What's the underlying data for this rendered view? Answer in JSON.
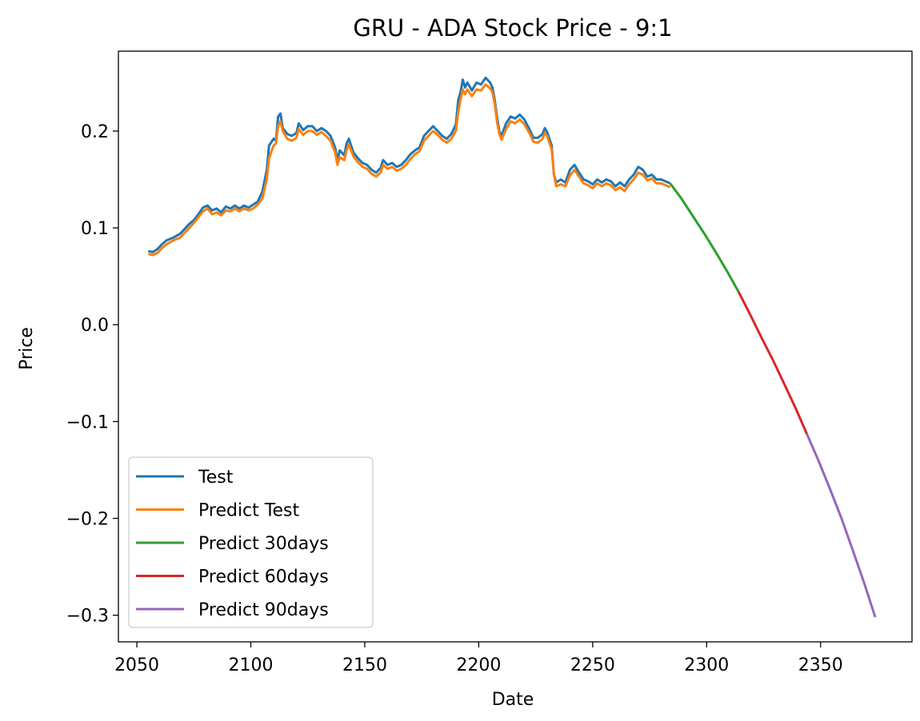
{
  "chart_data": {
    "type": "line",
    "title": "GRU - ADA Stock Price - 9:1",
    "xlabel": "Date",
    "ylabel": "Price",
    "xlim": [
      2041.9,
      2390.1
    ],
    "ylim": [
      -0.3275,
      0.2825
    ],
    "xticks": [
      2050,
      2100,
      2150,
      2200,
      2250,
      2300,
      2350
    ],
    "xtick_labels": [
      "2050",
      "2100",
      "2150",
      "2200",
      "2250",
      "2300",
      "2350"
    ],
    "yticks": [
      -0.3,
      -0.2,
      -0.1,
      0.0,
      0.1,
      0.2
    ],
    "ytick_labels": [
      "−0.3",
      "−0.2",
      "−0.1",
      "0.0",
      "0.1",
      "0.2"
    ],
    "grid": false,
    "legend_position": "lower-left",
    "series": [
      {
        "name": "Test",
        "color": "#1f77b4",
        "points": [
          [
            2055,
            0.076
          ],
          [
            2057,
            0.075
          ],
          [
            2059,
            0.078
          ],
          [
            2061,
            0.083
          ],
          [
            2063,
            0.087
          ],
          [
            2066,
            0.09
          ],
          [
            2069,
            0.094
          ],
          [
            2071,
            0.099
          ],
          [
            2073,
            0.104
          ],
          [
            2075,
            0.108
          ],
          [
            2077,
            0.114
          ],
          [
            2079,
            0.121
          ],
          [
            2081,
            0.123
          ],
          [
            2083,
            0.118
          ],
          [
            2085,
            0.12
          ],
          [
            2087,
            0.116
          ],
          [
            2089,
            0.122
          ],
          [
            2091,
            0.12
          ],
          [
            2093,
            0.123
          ],
          [
            2095,
            0.12
          ],
          [
            2097,
            0.123
          ],
          [
            2099,
            0.121
          ],
          [
            2101,
            0.124
          ],
          [
            2103,
            0.127
          ],
          [
            2105,
            0.137
          ],
          [
            2107,
            0.16
          ],
          [
            2108,
            0.185
          ],
          [
            2110,
            0.192
          ],
          [
            2111,
            0.19
          ],
          [
            2112,
            0.215
          ],
          [
            2113,
            0.218
          ],
          [
            2114,
            0.203
          ],
          [
            2116,
            0.197
          ],
          [
            2118,
            0.195
          ],
          [
            2120,
            0.198
          ],
          [
            2121,
            0.208
          ],
          [
            2123,
            0.201
          ],
          [
            2125,
            0.205
          ],
          [
            2127,
            0.205
          ],
          [
            2129,
            0.2
          ],
          [
            2131,
            0.203
          ],
          [
            2133,
            0.2
          ],
          [
            2135,
            0.195
          ],
          [
            2137,
            0.183
          ],
          [
            2138,
            0.17
          ],
          [
            2139,
            0.18
          ],
          [
            2141,
            0.175
          ],
          [
            2142,
            0.187
          ],
          [
            2143,
            0.192
          ],
          [
            2145,
            0.178
          ],
          [
            2147,
            0.172
          ],
          [
            2149,
            0.167
          ],
          [
            2151,
            0.165
          ],
          [
            2153,
            0.16
          ],
          [
            2155,
            0.157
          ],
          [
            2157,
            0.162
          ],
          [
            2158,
            0.17
          ],
          [
            2160,
            0.165
          ],
          [
            2162,
            0.167
          ],
          [
            2164,
            0.163
          ],
          [
            2166,
            0.165
          ],
          [
            2168,
            0.17
          ],
          [
            2170,
            0.176
          ],
          [
            2172,
            0.18
          ],
          [
            2174,
            0.183
          ],
          [
            2176,
            0.195
          ],
          [
            2178,
            0.2
          ],
          [
            2180,
            0.205
          ],
          [
            2182,
            0.2
          ],
          [
            2184,
            0.195
          ],
          [
            2186,
            0.192
          ],
          [
            2188,
            0.197
          ],
          [
            2190,
            0.207
          ],
          [
            2191,
            0.232
          ],
          [
            2192,
            0.24
          ],
          [
            2193,
            0.253
          ],
          [
            2194,
            0.245
          ],
          [
            2195,
            0.25
          ],
          [
            2197,
            0.242
          ],
          [
            2199,
            0.25
          ],
          [
            2201,
            0.248
          ],
          [
            2203,
            0.255
          ],
          [
            2205,
            0.25
          ],
          [
            2206,
            0.245
          ],
          [
            2207,
            0.232
          ],
          [
            2208,
            0.215
          ],
          [
            2209,
            0.2
          ],
          [
            2210,
            0.195
          ],
          [
            2212,
            0.208
          ],
          [
            2214,
            0.215
          ],
          [
            2216,
            0.213
          ],
          [
            2218,
            0.217
          ],
          [
            2220,
            0.212
          ],
          [
            2222,
            0.203
          ],
          [
            2224,
            0.193
          ],
          [
            2226,
            0.193
          ],
          [
            2228,
            0.197
          ],
          [
            2229,
            0.203
          ],
          [
            2230,
            0.199
          ],
          [
            2232,
            0.185
          ],
          [
            2233,
            0.155
          ],
          [
            2234,
            0.147
          ],
          [
            2236,
            0.15
          ],
          [
            2238,
            0.147
          ],
          [
            2240,
            0.16
          ],
          [
            2242,
            0.165
          ],
          [
            2244,
            0.157
          ],
          [
            2246,
            0.15
          ],
          [
            2248,
            0.148
          ],
          [
            2250,
            0.145
          ],
          [
            2252,
            0.15
          ],
          [
            2254,
            0.147
          ],
          [
            2256,
            0.15
          ],
          [
            2258,
            0.148
          ],
          [
            2260,
            0.143
          ],
          [
            2262,
            0.147
          ],
          [
            2264,
            0.143
          ],
          [
            2266,
            0.15
          ],
          [
            2268,
            0.155
          ],
          [
            2270,
            0.163
          ],
          [
            2272,
            0.16
          ],
          [
            2274,
            0.153
          ],
          [
            2276,
            0.155
          ],
          [
            2278,
            0.15
          ],
          [
            2280,
            0.15
          ],
          [
            2282,
            0.148
          ],
          [
            2284,
            0.146
          ]
        ]
      },
      {
        "name": "Predict Test",
        "color": "#ff7f0e",
        "points": [
          [
            2055,
            0.073
          ],
          [
            2057,
            0.072
          ],
          [
            2059,
            0.074
          ],
          [
            2061,
            0.079
          ],
          [
            2063,
            0.083
          ],
          [
            2066,
            0.087
          ],
          [
            2069,
            0.09
          ],
          [
            2071,
            0.095
          ],
          [
            2073,
            0.1
          ],
          [
            2075,
            0.105
          ],
          [
            2077,
            0.111
          ],
          [
            2079,
            0.117
          ],
          [
            2081,
            0.12
          ],
          [
            2083,
            0.114
          ],
          [
            2085,
            0.116
          ],
          [
            2087,
            0.113
          ],
          [
            2089,
            0.118
          ],
          [
            2091,
            0.117
          ],
          [
            2093,
            0.12
          ],
          [
            2095,
            0.117
          ],
          [
            2097,
            0.12
          ],
          [
            2099,
            0.118
          ],
          [
            2101,
            0.12
          ],
          [
            2103,
            0.124
          ],
          [
            2105,
            0.13
          ],
          [
            2107,
            0.15
          ],
          [
            2108,
            0.172
          ],
          [
            2110,
            0.185
          ],
          [
            2111,
            0.187
          ],
          [
            2112,
            0.205
          ],
          [
            2113,
            0.21
          ],
          [
            2114,
            0.2
          ],
          [
            2116,
            0.192
          ],
          [
            2118,
            0.19
          ],
          [
            2120,
            0.193
          ],
          [
            2121,
            0.202
          ],
          [
            2123,
            0.196
          ],
          [
            2125,
            0.2
          ],
          [
            2127,
            0.2
          ],
          [
            2129,
            0.196
          ],
          [
            2131,
            0.199
          ],
          [
            2133,
            0.195
          ],
          [
            2135,
            0.19
          ],
          [
            2137,
            0.178
          ],
          [
            2138,
            0.165
          ],
          [
            2139,
            0.173
          ],
          [
            2141,
            0.17
          ],
          [
            2142,
            0.18
          ],
          [
            2143,
            0.186
          ],
          [
            2145,
            0.174
          ],
          [
            2147,
            0.168
          ],
          [
            2149,
            0.163
          ],
          [
            2151,
            0.161
          ],
          [
            2153,
            0.156
          ],
          [
            2155,
            0.153
          ],
          [
            2157,
            0.157
          ],
          [
            2158,
            0.165
          ],
          [
            2160,
            0.161
          ],
          [
            2162,
            0.163
          ],
          [
            2164,
            0.159
          ],
          [
            2166,
            0.161
          ],
          [
            2168,
            0.165
          ],
          [
            2170,
            0.171
          ],
          [
            2172,
            0.176
          ],
          [
            2174,
            0.179
          ],
          [
            2176,
            0.19
          ],
          [
            2178,
            0.195
          ],
          [
            2180,
            0.2
          ],
          [
            2182,
            0.196
          ],
          [
            2184,
            0.191
          ],
          [
            2186,
            0.188
          ],
          [
            2188,
            0.192
          ],
          [
            2190,
            0.2
          ],
          [
            2191,
            0.22
          ],
          [
            2192,
            0.232
          ],
          [
            2193,
            0.243
          ],
          [
            2194,
            0.238
          ],
          [
            2195,
            0.243
          ],
          [
            2197,
            0.236
          ],
          [
            2199,
            0.243
          ],
          [
            2201,
            0.242
          ],
          [
            2203,
            0.248
          ],
          [
            2205,
            0.244
          ],
          [
            2206,
            0.24
          ],
          [
            2207,
            0.228
          ],
          [
            2208,
            0.21
          ],
          [
            2209,
            0.197
          ],
          [
            2210,
            0.191
          ],
          [
            2212,
            0.202
          ],
          [
            2214,
            0.21
          ],
          [
            2216,
            0.208
          ],
          [
            2218,
            0.212
          ],
          [
            2220,
            0.207
          ],
          [
            2222,
            0.199
          ],
          [
            2224,
            0.189
          ],
          [
            2226,
            0.188
          ],
          [
            2228,
            0.192
          ],
          [
            2229,
            0.198
          ],
          [
            2230,
            0.195
          ],
          [
            2232,
            0.181
          ],
          [
            2233,
            0.155
          ],
          [
            2234,
            0.143
          ],
          [
            2236,
            0.145
          ],
          [
            2238,
            0.143
          ],
          [
            2240,
            0.154
          ],
          [
            2242,
            0.16
          ],
          [
            2244,
            0.153
          ],
          [
            2246,
            0.146
          ],
          [
            2248,
            0.144
          ],
          [
            2250,
            0.141
          ],
          [
            2252,
            0.146
          ],
          [
            2254,
            0.143
          ],
          [
            2256,
            0.146
          ],
          [
            2258,
            0.144
          ],
          [
            2260,
            0.139
          ],
          [
            2262,
            0.142
          ],
          [
            2264,
            0.138
          ],
          [
            2266,
            0.145
          ],
          [
            2268,
            0.15
          ],
          [
            2270,
            0.157
          ],
          [
            2272,
            0.155
          ],
          [
            2274,
            0.149
          ],
          [
            2276,
            0.151
          ],
          [
            2278,
            0.146
          ],
          [
            2280,
            0.146
          ],
          [
            2282,
            0.144
          ],
          [
            2284,
            0.142
          ]
        ]
      },
      {
        "name": "Predict 30days",
        "color": "#2ca02c",
        "points": [
          [
            2284,
            0.146
          ],
          [
            2289,
            0.13
          ],
          [
            2294,
            0.112
          ],
          [
            2299,
            0.094
          ],
          [
            2304,
            0.075
          ],
          [
            2309,
            0.055
          ],
          [
            2314,
            0.034
          ]
        ]
      },
      {
        "name": "Predict 60days",
        "color": "#d62728",
        "points": [
          [
            2314,
            0.034
          ],
          [
            2319,
            0.011
          ],
          [
            2324,
            -0.013
          ],
          [
            2329,
            -0.036
          ],
          [
            2334,
            -0.061
          ],
          [
            2339,
            -0.086
          ],
          [
            2344,
            -0.113
          ]
        ]
      },
      {
        "name": "Predict 90days",
        "color": "#9467bd",
        "points": [
          [
            2344,
            -0.113
          ],
          [
            2349,
            -0.14
          ],
          [
            2354,
            -0.169
          ],
          [
            2359,
            -0.199
          ],
          [
            2364,
            -0.232
          ],
          [
            2369,
            -0.266
          ],
          [
            2374,
            -0.302
          ]
        ]
      }
    ]
  }
}
